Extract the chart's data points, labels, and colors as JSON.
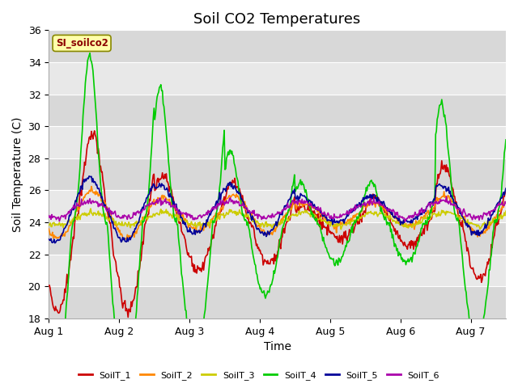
{
  "title": "Soil CO2 Temperatures",
  "xlabel": "Time",
  "ylabel": "Soil Temperature (C)",
  "ylim": [
    18,
    36
  ],
  "xlim": [
    0,
    156
  ],
  "xtick_positions": [
    0,
    24,
    48,
    72,
    96,
    120,
    144
  ],
  "xtick_labels": [
    "Aug 1",
    "Aug 2",
    "Aug 3",
    "Aug 4",
    "Aug 5",
    "Aug 6",
    "Aug 7"
  ],
  "ytick_positions": [
    18,
    20,
    22,
    24,
    26,
    28,
    30,
    32,
    34,
    36
  ],
  "legend_label": "SI_soilco2",
  "series_names": [
    "SoilT_1",
    "SoilT_2",
    "SoilT_3",
    "SoilT_4",
    "SoilT_5",
    "SoilT_6"
  ],
  "series_colors": [
    "#cc0000",
    "#ff8800",
    "#cccc00",
    "#00cc00",
    "#000099",
    "#aa00aa"
  ],
  "background_color": "#e8e8e8",
  "title_fontsize": 13,
  "axis_label_fontsize": 10,
  "tick_fontsize": 9,
  "grid_color": "#ffffff",
  "band_colors": [
    "#e8e8e8",
    "#d8d8d8"
  ]
}
